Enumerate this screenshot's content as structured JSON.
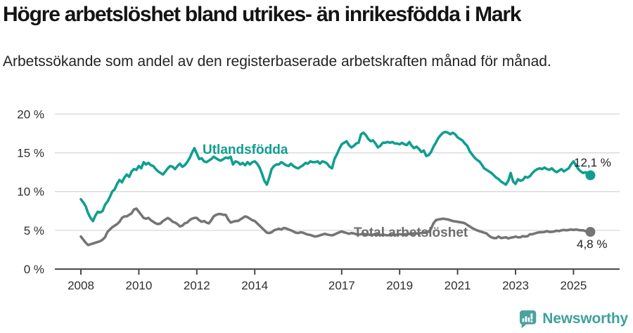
{
  "header": {
    "title": "Högre arbetslöshet bland utrikes- än inrikesfödda i Mark",
    "subtitle": "Arbetssökande som andel av den registerbaserade arbetskraften månad för månad."
  },
  "chart_data": {
    "type": "line",
    "title": "Högre arbetslöshet bland utrikes- än inrikesfödda i Mark",
    "subtitle": "Arbetssökande som andel av den registerbaserade arbetskraften månad för månad.",
    "x_axis": {
      "tick_years": [
        2008,
        2010,
        2012,
        2014,
        2017,
        2019,
        2021,
        2023,
        2025
      ],
      "tick_labels": [
        "2008",
        "2010",
        "2012",
        "2014",
        "2017",
        "2019",
        "2021",
        "2023",
        "2025"
      ],
      "range": [
        2007.1,
        2026.6
      ],
      "unit": "year, monthly data"
    },
    "y_axis": {
      "tick_values": [
        0,
        5,
        10,
        15,
        20
      ],
      "tick_labels": [
        "0 %",
        "5 %",
        "10 %",
        "15 %",
        "20 %"
      ],
      "range": [
        0,
        20
      ],
      "grid": true
    },
    "legend_position": "inline-labels",
    "series": [
      {
        "name": "Utlandsfödda",
        "color": "#109e90",
        "label_color": "#109e90",
        "end_label": "12,1 %",
        "end_value": 12.1,
        "start_year": 2008,
        "points_per_year": 12,
        "values": [
          9.0,
          8.6,
          8.1,
          7.2,
          6.6,
          6.2,
          6.9,
          7.4,
          7.3,
          7.5,
          8.3,
          8.7,
          9.3,
          10.0,
          10.3,
          11.0,
          11.5,
          11.2,
          11.8,
          12.2,
          11.9,
          12.6,
          12.9,
          12.8,
          13.3,
          13.0,
          13.8,
          13.5,
          13.7,
          13.4,
          13.3,
          12.9,
          12.6,
          12.4,
          12.2,
          12.6,
          13.0,
          13.3,
          13.2,
          12.9,
          13.3,
          13.6,
          13.2,
          13.4,
          13.8,
          14.3,
          15.0,
          15.6,
          14.9,
          14.2,
          14.3,
          13.9,
          13.8,
          14.0,
          14.2,
          14.5,
          14.3,
          14.1,
          14.0,
          14.2,
          14.4,
          14.3,
          14.5,
          13.5,
          13.9,
          13.8,
          13.5,
          13.7,
          13.4,
          13.8,
          13.5,
          13.8,
          13.9,
          13.6,
          13.1,
          12.3,
          11.4,
          10.9,
          11.8,
          12.9,
          13.3,
          13.5,
          13.5,
          13.8,
          13.6,
          13.4,
          13.3,
          13.6,
          13.3,
          13.1,
          13.0,
          13.2,
          13.4,
          13.7,
          13.6,
          13.9,
          13.8,
          13.8,
          13.9,
          13.6,
          13.9,
          13.8,
          13.6,
          13.2,
          13.0,
          14.2,
          14.8,
          15.5,
          16.1,
          16.3,
          16.5,
          16.0,
          15.7,
          15.9,
          16.2,
          16.3,
          17.4,
          17.6,
          17.3,
          16.8,
          16.5,
          16.6,
          16.2,
          15.7,
          15.9,
          16.3,
          16.3,
          16.4,
          16.3,
          16.4,
          16.2,
          16.2,
          16.1,
          16.3,
          16.1,
          16.0,
          16.4,
          15.9,
          15.6,
          15.8,
          15.5,
          15.1,
          15.3,
          14.6,
          14.7,
          15.1,
          15.8,
          16.3,
          16.9,
          17.3,
          17.6,
          17.7,
          17.6,
          17.4,
          17.6,
          17.4,
          17.0,
          16.8,
          16.6,
          16.2,
          15.9,
          15.2,
          14.8,
          14.4,
          14.1,
          13.9,
          13.5,
          13.0,
          12.8,
          12.6,
          12.4,
          12.1,
          11.8,
          11.6,
          11.3,
          11.1,
          10.9,
          11.4,
          12.4,
          11.3,
          11.0,
          11.6,
          11.4,
          11.5,
          11.9,
          11.8,
          12.0,
          12.4,
          12.7,
          12.9,
          13.0,
          12.9,
          13.1,
          12.9,
          12.8,
          13.0,
          12.7,
          12.5,
          12.7,
          12.9,
          12.6,
          12.8,
          13.0,
          13.5,
          13.9,
          13.4,
          12.9,
          12.6,
          12.4,
          12.5,
          12.3,
          12.1
        ]
      },
      {
        "name": "Total arbetslöshet",
        "color": "#757575",
        "label_color": "#6d6d6d",
        "end_label": "4,8 %",
        "end_value": 4.8,
        "start_year": 2008,
        "points_per_year": 12,
        "values": [
          4.2,
          3.8,
          3.4,
          3.1,
          3.2,
          3.3,
          3.4,
          3.5,
          3.6,
          3.8,
          4.1,
          4.8,
          5.1,
          5.4,
          5.6,
          5.8,
          6.1,
          6.6,
          6.8,
          6.8,
          7.0,
          7.2,
          7.7,
          7.8,
          7.4,
          7.0,
          6.6,
          6.5,
          6.6,
          6.3,
          6.1,
          5.9,
          5.8,
          5.9,
          6.2,
          6.4,
          6.6,
          6.4,
          6.1,
          6.0,
          5.8,
          5.5,
          5.6,
          5.9,
          6.0,
          6.3,
          6.5,
          6.6,
          6.6,
          6.3,
          6.1,
          6.2,
          6.0,
          5.9,
          6.3,
          6.8,
          7.0,
          7.1,
          7.1,
          7.0,
          7.0,
          6.4,
          6.0,
          6.1,
          6.2,
          6.2,
          6.4,
          6.6,
          6.8,
          6.7,
          6.5,
          6.3,
          6.2,
          5.9,
          5.6,
          5.3,
          5.0,
          4.7,
          4.65,
          4.75,
          5.0,
          5.1,
          5.2,
          5.1,
          5.3,
          5.25,
          5.1,
          5.0,
          4.85,
          4.7,
          4.65,
          4.75,
          4.7,
          4.55,
          4.45,
          4.4,
          4.3,
          4.2,
          4.25,
          4.35,
          4.45,
          4.55,
          4.45,
          4.4,
          4.35,
          4.45,
          4.6,
          4.75,
          4.85,
          4.75,
          4.65,
          4.55,
          4.65,
          4.6,
          4.5,
          4.45,
          4.5,
          4.55,
          4.5,
          4.45,
          4.4,
          4.45,
          4.5,
          4.45,
          4.4,
          4.45,
          4.4,
          4.35,
          4.4,
          4.45,
          4.4,
          4.45,
          4.5,
          4.45,
          4.5,
          4.5,
          4.55,
          4.5,
          4.55,
          4.6,
          4.6,
          4.65,
          4.7,
          4.75,
          4.8,
          5.2,
          5.9,
          6.3,
          6.4,
          6.45,
          6.5,
          6.45,
          6.4,
          6.3,
          6.2,
          6.15,
          6.1,
          6.05,
          6.0,
          5.9,
          5.7,
          5.5,
          5.3,
          5.15,
          5.0,
          4.9,
          4.8,
          4.7,
          4.6,
          4.3,
          4.1,
          4.0,
          4.0,
          4.2,
          4.0,
          4.05,
          4.1,
          3.95,
          4.05,
          4.1,
          4.2,
          4.1,
          4.1,
          4.25,
          4.2,
          4.25,
          4.5,
          4.5,
          4.6,
          4.7,
          4.75,
          4.75,
          4.8,
          4.9,
          4.8,
          4.8,
          4.85,
          4.95,
          4.9,
          5.0,
          5.05,
          5.0,
          5.05,
          5.1,
          5.05,
          5.1,
          5.05,
          5.0,
          5.0,
          4.9,
          4.85,
          4.8
        ]
      }
    ],
    "colors": {
      "grid": "#d8d8d8",
      "axis": "#4a4a4a",
      "axis_text": "#2e2e2e",
      "value_label_text": "#1f1f1f"
    }
  },
  "footer": {
    "brand": "Newsworthy",
    "brand_color": "#3fa29c",
    "icon_color": "#4aa39e"
  }
}
